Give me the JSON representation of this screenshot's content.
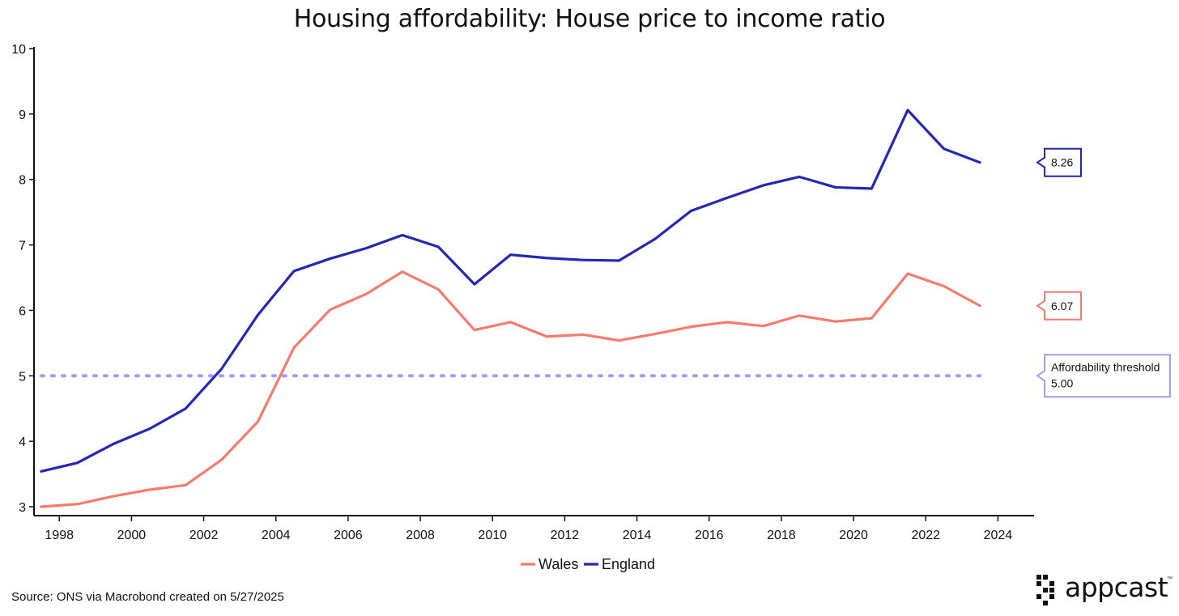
{
  "title": "Housing affordability: House price to income ratio",
  "source": "Source: ONS via Macrobond created on 5/27/2025",
  "brand": {
    "name": "appcast",
    "trademark": "™"
  },
  "colors": {
    "wales": "#f47c6c",
    "england": "#2427b3",
    "threshold": "#a69cf5",
    "axis": "#111111"
  },
  "chart_data": {
    "type": "line",
    "title": "Housing affordability: House price to income ratio",
    "xlabel": "",
    "ylabel": "",
    "xlim": [
      1997.3,
      2025
    ],
    "ylim": [
      3,
      10
    ],
    "x_ticks": [
      1998,
      2000,
      2002,
      2004,
      2006,
      2008,
      2010,
      2012,
      2014,
      2016,
      2018,
      2020,
      2022,
      2024
    ],
    "y_ticks": [
      3,
      4,
      5,
      6,
      7,
      8,
      9,
      10
    ],
    "grid": false,
    "legend_position": "bottom-center",
    "x": [
      1997.5,
      1998.5,
      1999.5,
      2000.5,
      2001.5,
      2002.5,
      2003.5,
      2004.5,
      2005.5,
      2006.5,
      2007.5,
      2008.5,
      2009.5,
      2010.5,
      2011.5,
      2012.5,
      2013.5,
      2014.5,
      2015.5,
      2016.5,
      2017.5,
      2018.5,
      2019.5,
      2020.5,
      2021.5,
      2022.5,
      2023.5
    ],
    "series": [
      {
        "name": "Wales",
        "color": "#f47c6c",
        "values": [
          3.0,
          3.04,
          3.16,
          3.26,
          3.33,
          3.72,
          4.3,
          5.43,
          6.01,
          6.25,
          6.59,
          6.32,
          5.7,
          5.82,
          5.6,
          5.63,
          5.54,
          5.64,
          5.75,
          5.82,
          5.76,
          5.92,
          5.83,
          5.88,
          6.56,
          6.37,
          6.07
        ]
      },
      {
        "name": "England",
        "color": "#2427b3",
        "values": [
          3.54,
          3.67,
          3.96,
          4.19,
          4.5,
          5.11,
          5.93,
          6.6,
          6.79,
          6.95,
          7.15,
          6.97,
          6.4,
          6.85,
          6.8,
          6.77,
          6.76,
          7.09,
          7.52,
          7.72,
          7.91,
          8.04,
          7.88,
          7.86,
          9.06,
          8.47,
          8.26
        ]
      }
    ],
    "threshold": {
      "value": 5.0,
      "x_start": 1997.5,
      "x_end": 2023.5
    },
    "callouts": [
      {
        "series": "England",
        "text": "8.26"
      },
      {
        "series": "Wales",
        "text": "6.07"
      },
      {
        "series": "threshold",
        "line1": "Affordability threshold",
        "line2": "5.00"
      }
    ],
    "legend": [
      "Wales",
      "England"
    ]
  }
}
